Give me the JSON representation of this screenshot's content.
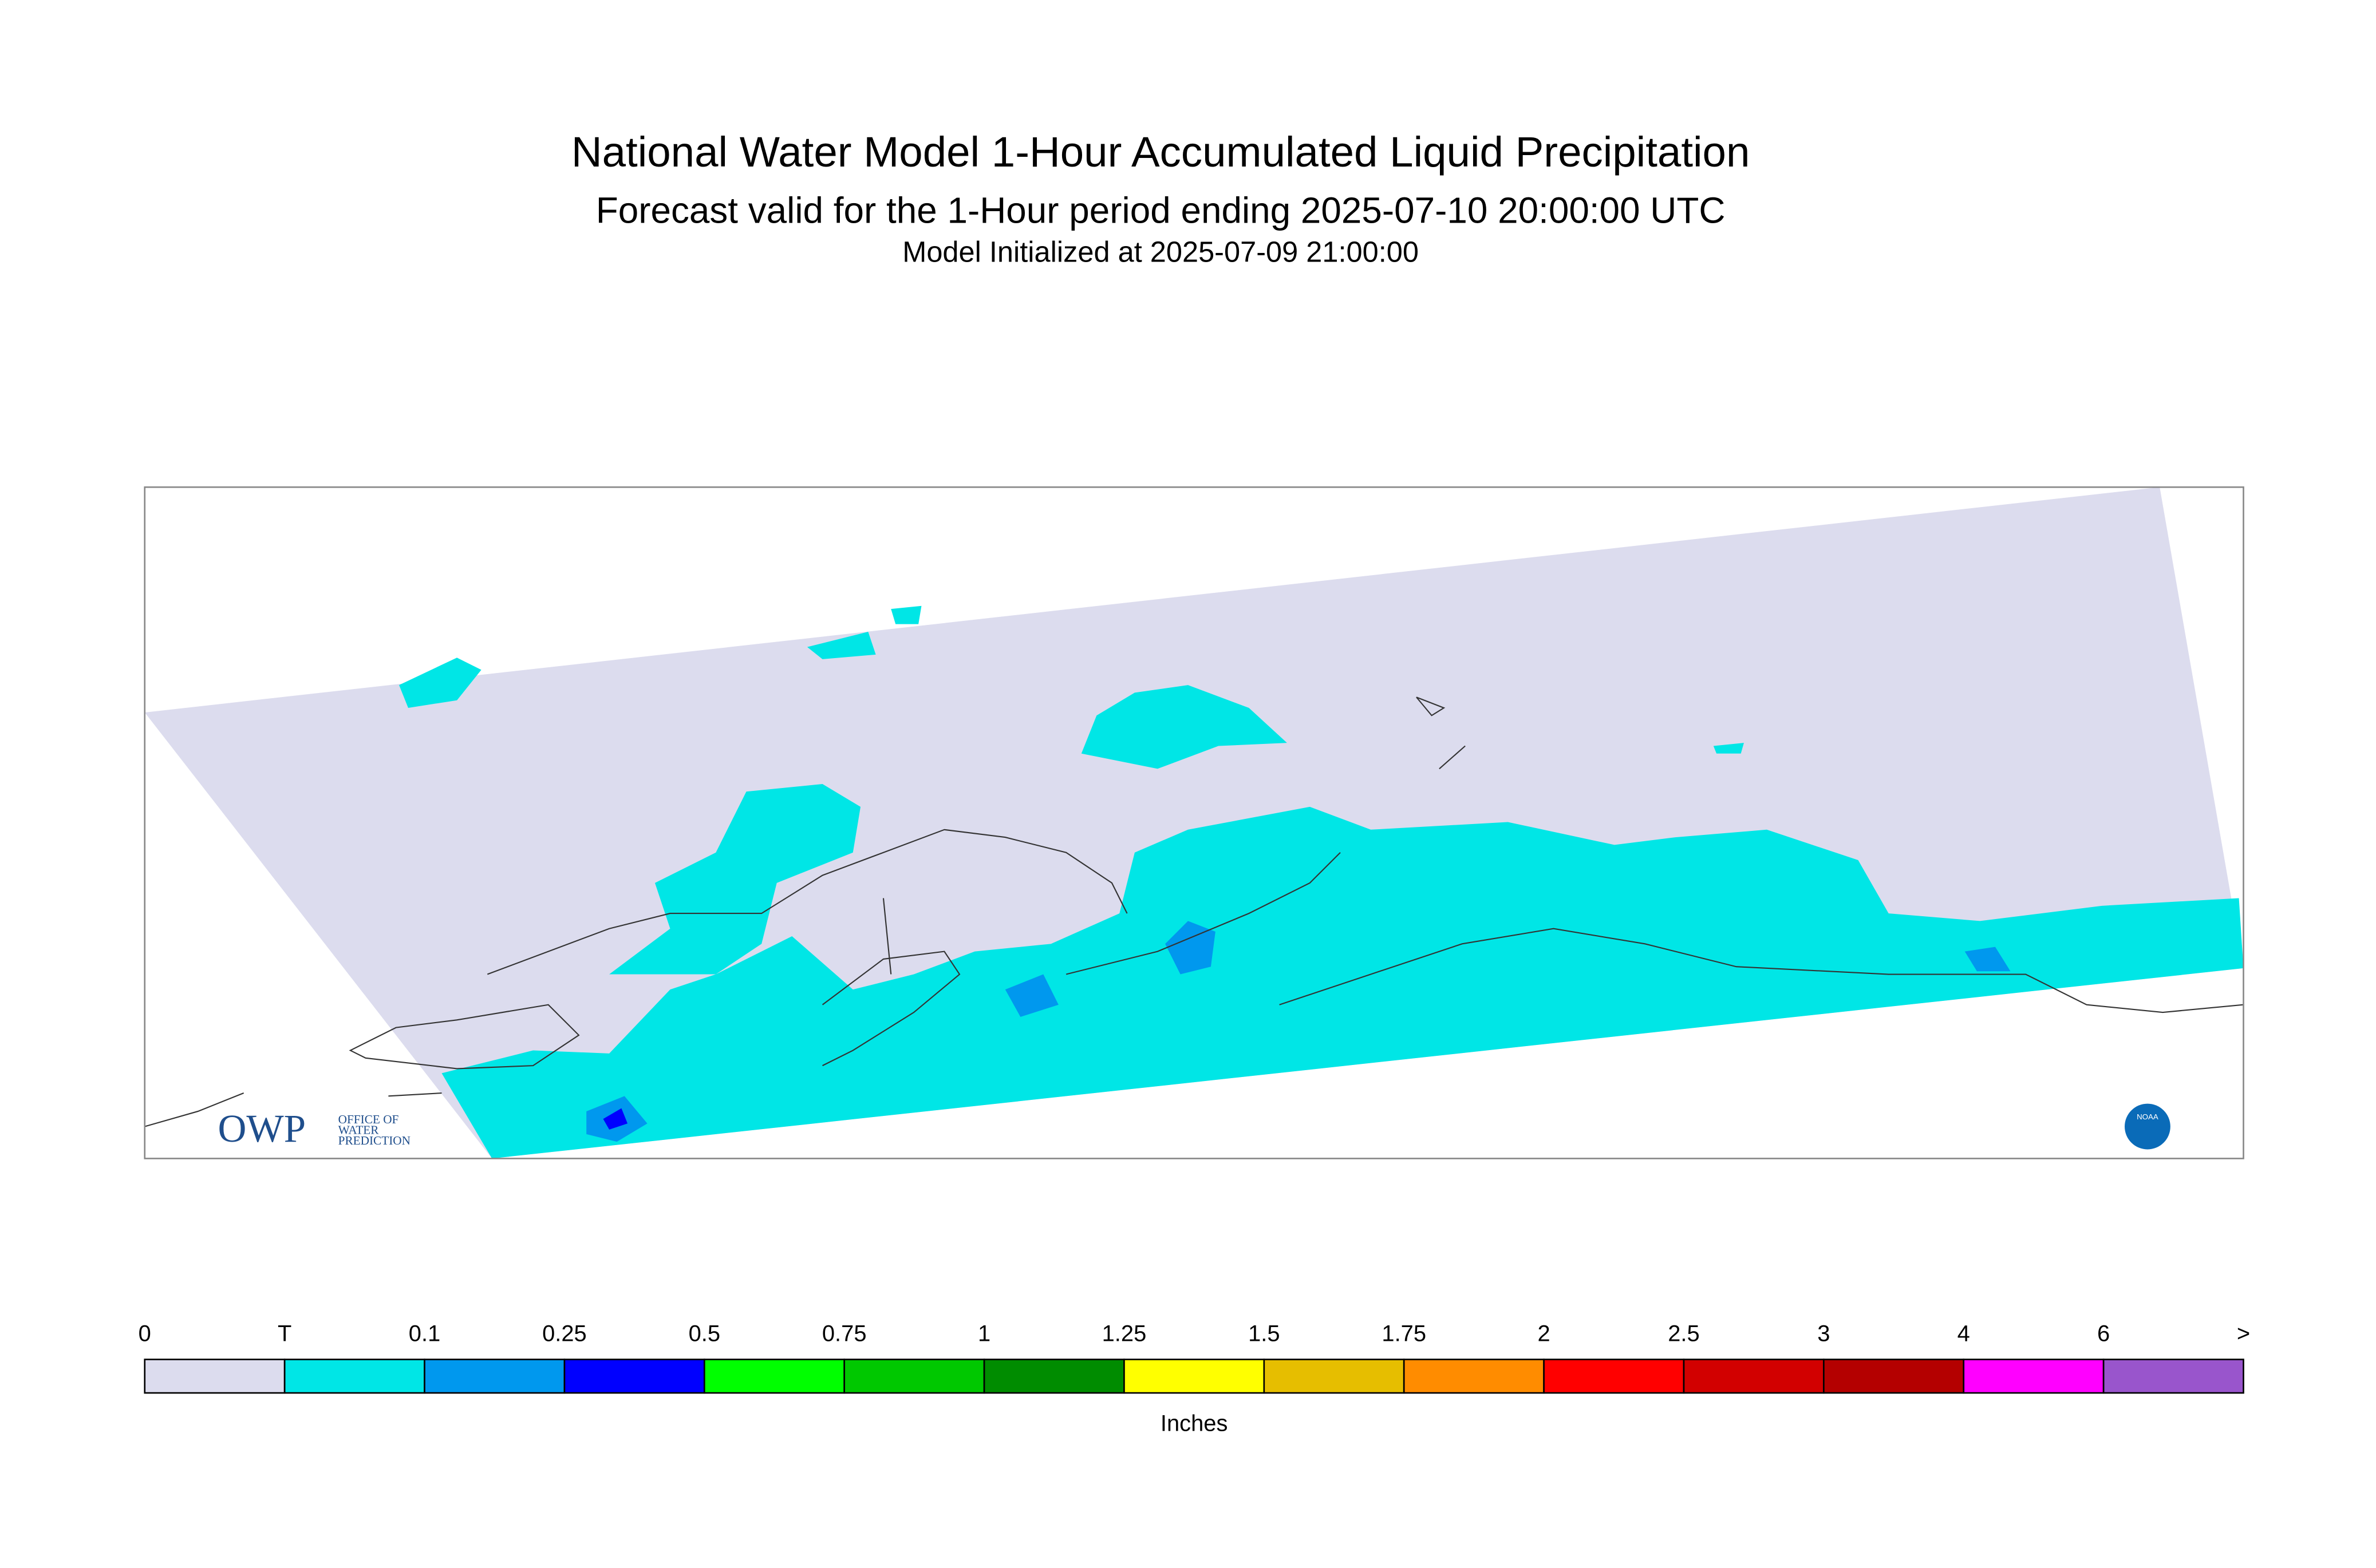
{
  "header": {
    "title": "National Water Model 1-Hour Accumulated Liquid Precipitation",
    "subtitle": "Forecast valid for the 1-Hour period ending 2025-07-10 20:00:00 UTC",
    "init": "Model Initialized at 2025-07-09 21:00:00"
  },
  "logos": {
    "owp": "OWP",
    "owp_lines": [
      "OFFICE OF",
      "WATER",
      "PREDICTION"
    ],
    "noaa": "NOAA"
  },
  "legend": {
    "labels": [
      "0",
      "T",
      "0.1",
      "0.25",
      "0.5",
      "0.75",
      "1",
      "1.25",
      "1.5",
      "1.75",
      "2",
      "2.5",
      "3",
      "4",
      "6",
      ">"
    ],
    "colors": [
      "#dcdcee",
      "#00e6e6",
      "#0098ee",
      "#0000ff",
      "#00ff00",
      "#00c800",
      "#008c00",
      "#ffff00",
      "#e6be00",
      "#ff8c00",
      "#ff0000",
      "#d20000",
      "#b40000",
      "#ff00ff",
      "#9955cc"
    ],
    "unit": "Inches"
  }
}
